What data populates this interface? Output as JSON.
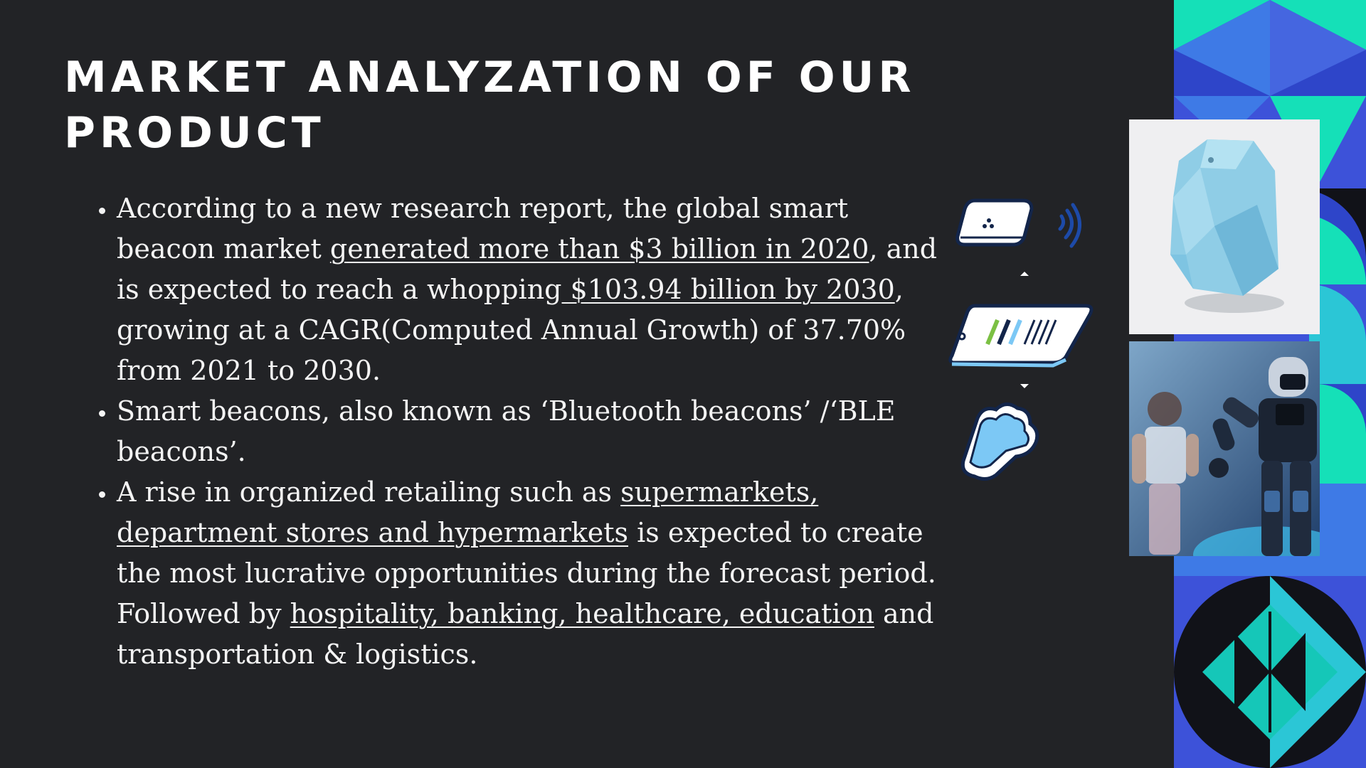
{
  "title": "MARKET ANALYZATION OF OUR PRODUCT",
  "bullets": [
    {
      "p1": "According to a new research report, the global smart beacon market ",
      "u1": "generated more than $3 billion in 2020",
      "p2": ", and is expected to reach a whopping",
      "u2": " $103.94 billion by 2030",
      "p3": ", growing at a CAGR(Computed Annual Growth) of 37.70% from 2021 to 2030."
    },
    {
      "p1": "Smart beacons, also known as ‘Bluetooth beacons’ /‘BLE beacons’."
    },
    {
      "p1": "A rise in organized retailing such as ",
      "u1": "supermarkets, department stores and hypermarkets",
      "p2": " is expected to create the most lucrative opportunities during the forecast period. Followed by ",
      "u2": "hospitality, banking, healthcare, education",
      "p3": " and transportation & logistics."
    }
  ],
  "icons": [
    "beacon-device-icon",
    "wireless-signal-icon",
    "tablet-barcode-icon",
    "cloud-icon"
  ],
  "images": [
    "smart-beacon-photo",
    "child-and-robot-photo"
  ],
  "colors": {
    "background": "#222326",
    "text": "#f4f4f4",
    "accent_blue": "#3d52d9",
    "accent_mid_blue": "#3e7ae6",
    "accent_teal": "#15e0b8",
    "accent_cyan": "#2bc6d6",
    "icon_light_blue": "#7cc8f5"
  }
}
